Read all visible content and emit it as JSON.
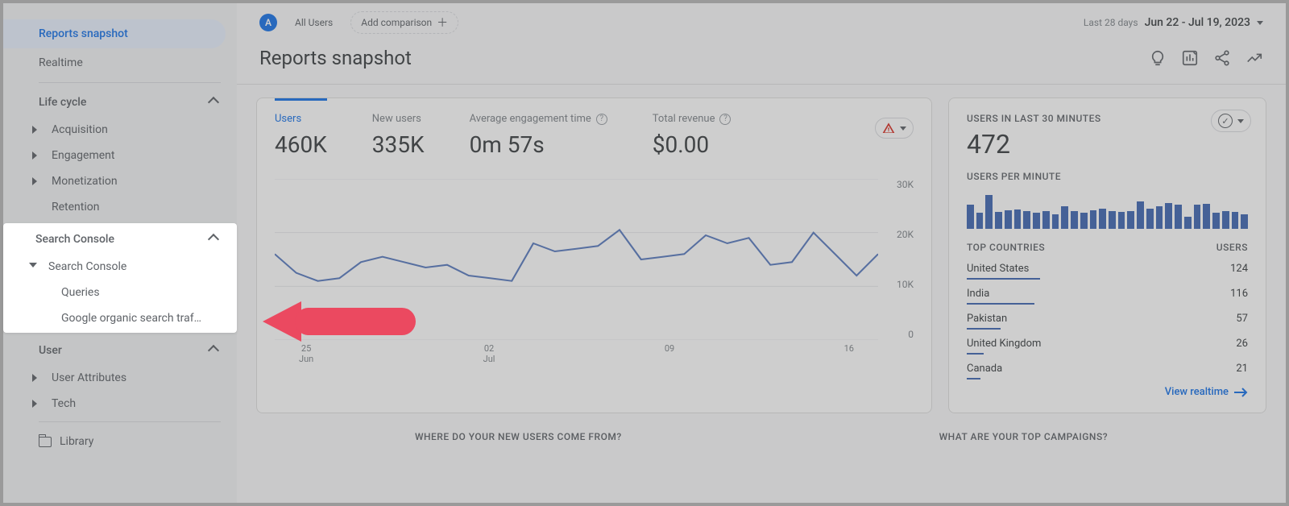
{
  "sidebar": {
    "items": {
      "reports_snapshot": "Reports snapshot",
      "realtime": "Realtime",
      "library": "Library"
    },
    "sections": {
      "life_cycle": {
        "label": "Life cycle",
        "items": [
          "Acquisition",
          "Engagement",
          "Monetization",
          "Retention"
        ]
      },
      "search_console": {
        "label": "Search Console",
        "group": "Search Console",
        "items": [
          "Queries",
          "Google organic search traf…"
        ]
      },
      "user": {
        "label": "User",
        "items": [
          "User Attributes",
          "Tech"
        ]
      }
    }
  },
  "topbar": {
    "badge_letter": "A",
    "all_users": "All Users",
    "add_comparison": "Add comparison",
    "last_label": "Last 28 days",
    "date_range": "Jun 22 - Jul 19, 2023"
  },
  "page": {
    "title": "Reports snapshot"
  },
  "metrics": [
    {
      "label": "Users",
      "value": "460K",
      "active": true,
      "help": false
    },
    {
      "label": "New users",
      "value": "335K",
      "active": false,
      "help": false
    },
    {
      "label": "Average engagement time",
      "value": "0m 57s",
      "active": false,
      "help": true
    },
    {
      "label": "Total revenue",
      "value": "$0.00",
      "active": false,
      "help": true
    }
  ],
  "main_chart": {
    "y_ticks": [
      "30K",
      "20K",
      "10K",
      "0"
    ],
    "x_ticks": [
      {
        "top": "25",
        "bottom": "Jun"
      },
      {
        "top": "02",
        "bottom": "Jul"
      },
      {
        "top": "09",
        "bottom": ""
      },
      {
        "top": "16",
        "bottom": ""
      }
    ],
    "y_max": 30,
    "series_color": "#5a7cc0",
    "grid_color": "#e8eaed",
    "points": [
      16,
      12.5,
      11,
      11.5,
      14.5,
      15.5,
      14.5,
      13.5,
      14,
      12,
      11.5,
      11,
      18,
      16.5,
      17,
      17.5,
      20.5,
      15,
      15.5,
      16,
      19.5,
      18,
      19,
      14,
      14.5,
      20,
      16,
      12,
      16
    ]
  },
  "realtime_card": {
    "title": "USERS IN LAST 30 MINUTES",
    "value": "472",
    "sub_title": "USERS PER MINUTE",
    "bars_color": "#4268b3",
    "bars_max": 50,
    "bars": [
      30,
      20,
      42,
      21,
      23,
      24,
      22,
      20,
      22,
      18,
      28,
      22,
      20,
      23,
      25,
      22,
      21,
      22,
      34,
      25,
      28,
      32,
      30,
      15,
      30,
      31,
      20,
      22,
      21,
      18
    ],
    "countries_header": {
      "left": "TOP COUNTRIES",
      "right": "USERS"
    },
    "countries": [
      {
        "name": "United States",
        "value": "124",
        "bar_pct": 26
      },
      {
        "name": "India",
        "value": "116",
        "bar_pct": 24
      },
      {
        "name": "Pakistan",
        "value": "57",
        "bar_pct": 12
      },
      {
        "name": "United Kingdom",
        "value": "26",
        "bar_pct": 6
      },
      {
        "name": "Canada",
        "value": "21",
        "bar_pct": 5
      }
    ],
    "view_link": "View realtime"
  },
  "footer": {
    "left": "WHERE DO YOUR NEW USERS COME FROM?",
    "right": "WHAT ARE YOUR TOP CAMPAIGNS?"
  },
  "colors": {
    "accent": "#1a73e8",
    "arrow": "#eb4960"
  }
}
